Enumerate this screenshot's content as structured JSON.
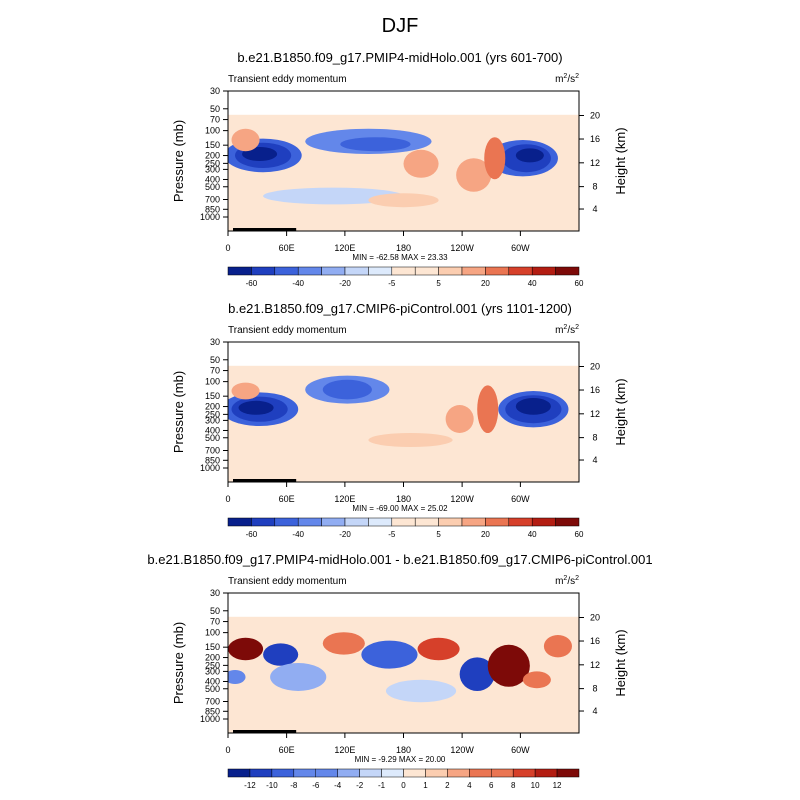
{
  "figure_title": "DJF",
  "colors": {
    "panel_levels_neg": [
      "#08208c",
      "#1f3fbf",
      "#3c62db",
      "#6387ea",
      "#91adf2",
      "#c4d6f8",
      "#ddeafc"
    ],
    "panel_levels_pos": [
      "#fde6d3",
      "#fbcdb0",
      "#f6a583",
      "#ea7552",
      "#d6402a",
      "#b31d12",
      "#7d0a08"
    ],
    "background": "#fde6d3",
    "frame": "#000000"
  },
  "chart_data": [
    {
      "type": "heatmap",
      "title": "b.e21.B1850.f09_g17.PMIP4-midHolo.001 (yrs 601-700)",
      "left_label": "Transient eddy momentum",
      "right_label_base": "m",
      "right_label_sup1": "2",
      "right_label_mid": "/s",
      "right_label_sup2": "2",
      "ylabel": "Pressure (mb)",
      "y2label": "Height (km)",
      "xticks": [
        "0",
        "60E",
        "120E",
        "180",
        "120W",
        "60W"
      ],
      "yticks": [
        "30",
        "50",
        "70",
        "100",
        "150",
        "200",
        "250",
        "300",
        "400",
        "500",
        "700",
        "850",
        "1000"
      ],
      "y2ticks": [
        "20",
        "16",
        "12",
        "8",
        "4"
      ],
      "stats": "MIN = -62.58  MAX =  23.33",
      "colorbar_labels": [
        "-60",
        "-40",
        "-20",
        "-5",
        "5",
        "20",
        "40",
        "60"
      ],
      "min": -62.58,
      "max": 23.33
    },
    {
      "type": "heatmap",
      "title": "b.e21.B1850.f09_g17.CMIP6-piControl.001 (yrs 1101-1200)",
      "left_label": "Transient eddy momentum",
      "right_label_base": "m",
      "right_label_sup1": "2",
      "right_label_mid": "/s",
      "right_label_sup2": "2",
      "ylabel": "Pressure (mb)",
      "y2label": "Height (km)",
      "xticks": [
        "0",
        "60E",
        "120E",
        "180",
        "120W",
        "60W"
      ],
      "yticks": [
        "30",
        "50",
        "70",
        "100",
        "150",
        "200",
        "250",
        "300",
        "400",
        "500",
        "700",
        "850",
        "1000"
      ],
      "y2ticks": [
        "20",
        "16",
        "12",
        "8",
        "4"
      ],
      "stats": "MIN = -69.00  MAX =  25.02",
      "colorbar_labels": [
        "-60",
        "-40",
        "-20",
        "-5",
        "5",
        "20",
        "40",
        "60"
      ],
      "min": -69.0,
      "max": 25.02
    },
    {
      "type": "heatmap",
      "title": "b.e21.B1850.f09_g17.PMIP4-midHolo.001 - b.e21.B1850.f09_g17.CMIP6-piControl.001",
      "left_label": "Transient eddy momentum",
      "right_label_base": "m",
      "right_label_sup1": "2",
      "right_label_mid": "/s",
      "right_label_sup2": "2",
      "ylabel": "Pressure (mb)",
      "y2label": "Height (km)",
      "xticks": [
        "0",
        "60E",
        "120E",
        "180",
        "120W",
        "60W"
      ],
      "yticks": [
        "30",
        "50",
        "70",
        "100",
        "150",
        "200",
        "250",
        "300",
        "400",
        "500",
        "700",
        "850",
        "1000"
      ],
      "y2ticks": [
        "20",
        "16",
        "12",
        "8",
        "4"
      ],
      "stats": "MIN = -9.29  MAX = 20.00",
      "colorbar_labels": [
        "-12",
        "-10",
        "-8",
        "-6",
        "-4",
        "-2",
        "-1",
        "0",
        "1",
        "2",
        "4",
        "6",
        "8",
        "10",
        "12"
      ],
      "min": -9.29,
      "max": 20.0
    }
  ]
}
